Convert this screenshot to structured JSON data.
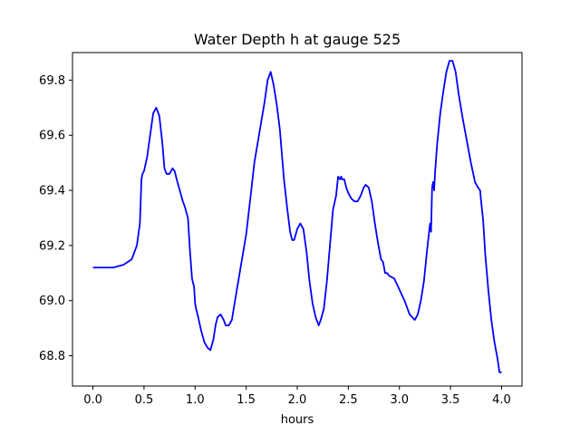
{
  "chart_data": {
    "type": "line",
    "title": "Water Depth h at gauge 525",
    "xlabel": "hours",
    "ylabel": "",
    "xlim": [
      -0.2,
      4.2
    ],
    "ylim": [
      68.69,
      69.9
    ],
    "grid": false,
    "xticks": [
      "0.0",
      "0.5",
      "1.0",
      "1.5",
      "2.0",
      "2.5",
      "3.0",
      "3.5",
      "4.0"
    ],
    "xtick_values": [
      0.0,
      0.5,
      1.0,
      1.5,
      2.0,
      2.5,
      3.0,
      3.5,
      4.0
    ],
    "yticks": [
      "68.8",
      "69.0",
      "69.2",
      "69.4",
      "69.6",
      "69.8"
    ],
    "ytick_values": [
      68.8,
      69.0,
      69.2,
      69.4,
      69.6,
      69.8
    ],
    "series": [
      {
        "color": "#0000ff",
        "x": [
          0.0,
          0.1,
          0.2,
          0.3,
          0.38,
          0.43,
          0.46,
          0.475,
          0.485,
          0.5,
          0.53,
          0.56,
          0.59,
          0.62,
          0.65,
          0.68,
          0.7,
          0.72,
          0.75,
          0.78,
          0.8,
          0.82,
          0.85,
          0.88,
          0.9,
          0.93,
          0.95,
          0.97,
          0.99,
          1.0,
          1.01,
          1.03,
          1.06,
          1.09,
          1.12,
          1.15,
          1.18,
          1.2,
          1.22,
          1.25,
          1.28,
          1.3,
          1.33,
          1.36,
          1.4,
          1.45,
          1.5,
          1.55,
          1.58,
          1.63,
          1.68,
          1.71,
          1.74,
          1.77,
          1.8,
          1.83,
          1.87,
          1.9,
          1.93,
          1.95,
          1.97,
          2.0,
          2.03,
          2.06,
          2.09,
          2.12,
          2.15,
          2.18,
          2.21,
          2.23,
          2.26,
          2.29,
          2.32,
          2.35,
          2.38,
          2.4,
          2.42,
          2.43,
          2.44,
          2.46,
          2.48,
          2.5,
          2.53,
          2.56,
          2.59,
          2.62,
          2.65,
          2.67,
          2.7,
          2.73,
          2.76,
          2.79,
          2.82,
          2.84,
          2.86,
          2.88,
          2.9,
          2.95,
          3.0,
          3.05,
          3.1,
          3.15,
          3.18,
          3.21,
          3.24,
          3.27,
          3.3,
          3.31,
          3.32,
          3.33,
          3.34,
          3.35,
          3.37,
          3.4,
          3.43,
          3.46,
          3.49,
          3.52,
          3.55,
          3.58,
          3.62,
          3.66,
          3.7,
          3.74,
          3.77,
          3.79,
          3.8,
          3.82,
          3.84,
          3.87,
          3.9,
          3.93,
          3.96,
          3.98,
          4.0
        ],
        "y": [
          69.12,
          69.12,
          69.12,
          69.13,
          69.15,
          69.2,
          69.28,
          69.44,
          69.46,
          69.47,
          69.52,
          69.6,
          69.68,
          69.7,
          69.67,
          69.57,
          69.48,
          69.46,
          69.46,
          69.48,
          69.47,
          69.44,
          69.4,
          69.36,
          69.34,
          69.3,
          69.18,
          69.08,
          69.05,
          68.99,
          68.97,
          68.94,
          68.89,
          68.85,
          68.83,
          68.82,
          68.86,
          68.91,
          68.94,
          68.95,
          68.93,
          68.91,
          68.91,
          68.93,
          69.02,
          69.13,
          69.24,
          69.4,
          69.5,
          69.61,
          69.72,
          69.8,
          69.83,
          69.78,
          69.71,
          69.62,
          69.44,
          69.34,
          69.25,
          69.22,
          69.22,
          69.26,
          69.28,
          69.26,
          69.18,
          69.07,
          68.99,
          68.94,
          68.91,
          68.93,
          68.97,
          69.07,
          69.2,
          69.33,
          69.38,
          69.45,
          69.44,
          69.45,
          69.44,
          69.44,
          69.41,
          69.39,
          69.37,
          69.36,
          69.36,
          69.38,
          69.41,
          69.42,
          69.41,
          69.36,
          69.28,
          69.21,
          69.15,
          69.14,
          69.1,
          69.1,
          69.09,
          69.08,
          69.04,
          69.0,
          68.95,
          68.93,
          68.95,
          69.0,
          69.07,
          69.18,
          69.28,
          69.25,
          69.41,
          69.43,
          69.4,
          69.47,
          69.57,
          69.68,
          69.76,
          69.83,
          69.87,
          69.87,
          69.83,
          69.75,
          69.66,
          69.58,
          69.5,
          69.43,
          69.41,
          69.4,
          69.36,
          69.29,
          69.17,
          69.04,
          68.93,
          68.85,
          68.79,
          68.74,
          68.74
        ]
      }
    ]
  }
}
